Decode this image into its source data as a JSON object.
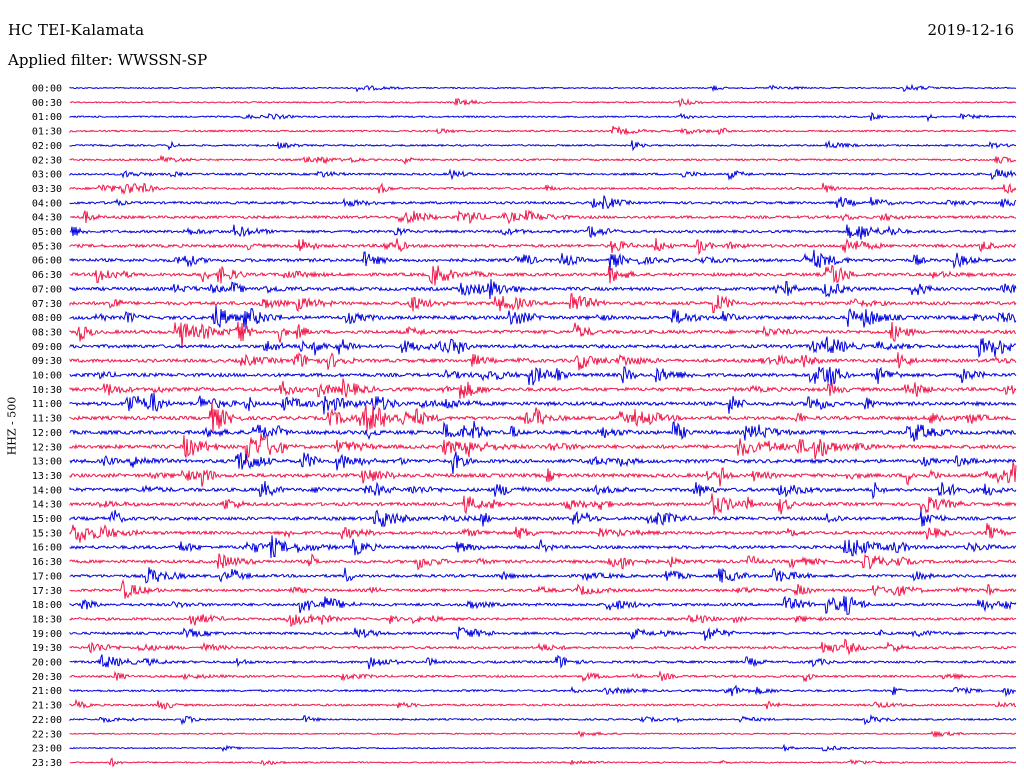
{
  "header": {
    "station": "HC TEI-Kalamata",
    "date": "2019-12-16",
    "filter": "Applied filter: WWSSN-SP"
  },
  "chart_data": {
    "type": "line",
    "title": "HC TEI-Kalamata",
    "ylabel": "HHZ - 500",
    "trace_colors": [
      "#0000e0",
      "#f0174a"
    ],
    "rows": [
      "00:00",
      "00:30",
      "01:00",
      "01:30",
      "02:00",
      "02:30",
      "03:00",
      "03:30",
      "04:00",
      "04:30",
      "05:00",
      "05:30",
      "06:00",
      "06:30",
      "07:00",
      "07:30",
      "08:00",
      "08:30",
      "09:00",
      "09:30",
      "10:00",
      "10:30",
      "11:00",
      "11:30",
      "12:00",
      "12:30",
      "13:00",
      "13:30",
      "14:00",
      "14:30",
      "15:00",
      "15:30",
      "16:00",
      "16:30",
      "17:00",
      "17:30",
      "18:00",
      "18:30",
      "19:00",
      "19:30",
      "20:00",
      "20:30",
      "21:00",
      "21:30",
      "22:00",
      "22:30",
      "23:00",
      "23:30"
    ],
    "activity": [
      0.15,
      0.2,
      0.25,
      0.3,
      0.3,
      0.35,
      0.4,
      0.45,
      0.55,
      0.65,
      0.6,
      0.75,
      0.8,
      0.8,
      0.85,
      0.85,
      0.9,
      0.9,
      0.85,
      0.85,
      0.9,
      0.9,
      0.95,
      0.95,
      1.0,
      1.0,
      0.95,
      0.95,
      0.9,
      0.85,
      0.85,
      0.8,
      0.8,
      0.75,
      0.7,
      0.65,
      0.65,
      0.6,
      0.55,
      0.55,
      0.5,
      0.45,
      0.4,
      0.4,
      0.3,
      0.15,
      0.1,
      0.2
    ]
  }
}
